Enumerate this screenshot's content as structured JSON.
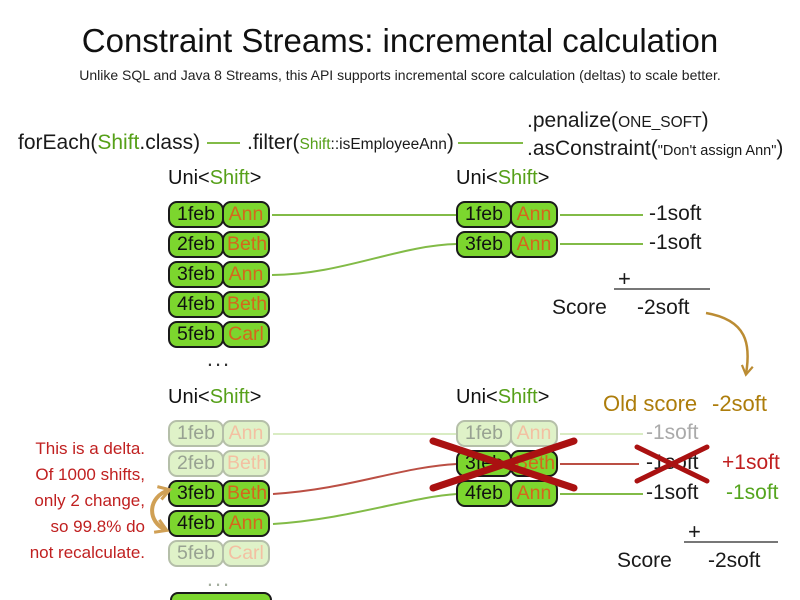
{
  "title": "Constraint Streams: incremental calculation",
  "subtitle": "Unlike SQL and Java 8 Streams, this API supports incremental score calculation (deltas) to scale better.",
  "code": {
    "foreach_pre": "forEach(",
    "foreach_class": "Shift",
    "foreach_post": ".class)",
    "filter_pre": ".filter(",
    "filter_class": "Shift",
    "filter_method": "::isEmployeeAnn",
    "filter_post": ")",
    "penalize_pre": ".penalize(",
    "penalize_arg": "ONE_SOFT",
    "penalize_post": ")",
    "asconstraint_pre": ".asConstraint(",
    "asconstraint_arg": "\"Don't assign Ann\"",
    "asconstraint_post": ")"
  },
  "uni_header": {
    "pre": "Uni<",
    "type": "Shift",
    "post": ">"
  },
  "tables": {
    "top_left": {
      "rows": [
        {
          "date": "1feb",
          "name": "Ann",
          "state": "normal"
        },
        {
          "date": "2feb",
          "name": "Beth",
          "state": "normal"
        },
        {
          "date": "3feb",
          "name": "Ann",
          "state": "normal"
        },
        {
          "date": "4feb",
          "name": "Beth",
          "state": "normal"
        },
        {
          "date": "5feb",
          "name": "Carl",
          "state": "normal"
        }
      ],
      "ellipsis": "..."
    },
    "top_right": {
      "rows": [
        {
          "date": "1feb",
          "name": "Ann",
          "state": "normal"
        },
        {
          "date": "3feb",
          "name": "Ann",
          "state": "normal"
        }
      ]
    },
    "bottom_left": {
      "rows": [
        {
          "date": "1feb",
          "name": "Ann",
          "state": "faded"
        },
        {
          "date": "2feb",
          "name": "Beth",
          "state": "faded"
        },
        {
          "date": "3feb",
          "name": "Beth",
          "state": "normal"
        },
        {
          "date": "4feb",
          "name": "Ann",
          "state": "normal"
        },
        {
          "date": "5feb",
          "name": "Carl",
          "state": "faded"
        }
      ],
      "ellipsis": "..."
    },
    "bottom_right": {
      "rows": [
        {
          "date": "1feb",
          "name": "Ann",
          "state": "faded"
        },
        {
          "date": "3feb",
          "name": "Beth",
          "state": "crossed"
        },
        {
          "date": "4feb",
          "name": "Ann",
          "state": "normal"
        }
      ]
    }
  },
  "top_scoring": {
    "matches": [
      "-1soft",
      "-1soft"
    ],
    "plus": "+",
    "score_label": "Score",
    "score_value": "-2soft"
  },
  "old_score": {
    "label": "Old score",
    "value": "-2soft"
  },
  "bottom_scoring": {
    "matches": [
      {
        "value": "-1soft",
        "state": "faded",
        "delta": ""
      },
      {
        "value": "-1soft",
        "state": "crossed",
        "delta": "+1soft"
      },
      {
        "value": "-1soft",
        "state": "normal",
        "delta": "-1soft"
      }
    ],
    "plus": "+",
    "score_label": "Score",
    "score_value": "-2soft"
  },
  "delta_note": {
    "lines": [
      "This is a delta.",
      "Of 1000 shifts,",
      "only 2 change,",
      "so 99.8% do",
      "not recalculate."
    ]
  },
  "colors": {
    "box_green": "#7cd62e",
    "box_border": "#1a1a1a",
    "faded_bg": "#dff2c8",
    "faded_border": "#b5bfa9",
    "faded_date": "#98a292",
    "faded_name": "#f3c0a2",
    "name_orange": "#d4671c",
    "text_green": "#56a019",
    "line_green": "#82bb47",
    "line_faded": "#d9ecc3",
    "line_red": "#bb4f44",
    "red_x": "#aa1111",
    "red_text": "#c02020",
    "green_text": "#55a51e",
    "brown": "#ad7d0b",
    "brown_arrow": "#bb8c33",
    "tan_arrow": "#d0a055",
    "gray_line": "#777777",
    "gray_text": "#aaaaaa"
  }
}
